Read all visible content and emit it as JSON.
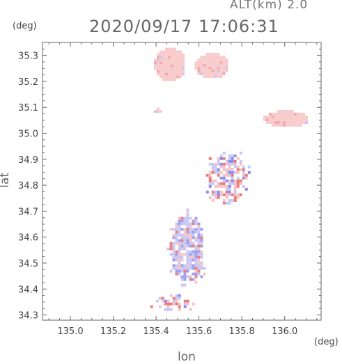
{
  "header": {
    "altitude_label": "ALT(km) 2.0",
    "timestamp": "2020/09/17 17:06:31",
    "y_unit": "(deg)",
    "x_unit": "(deg)"
  },
  "chart_data": {
    "type": "heatmap",
    "title": "2020/09/17 17:06:31",
    "xlabel": "lon",
    "ylabel": "lat",
    "xlim": [
      134.87,
      136.17
    ],
    "ylim": [
      34.28,
      35.35
    ],
    "xticks": [
      "135.0",
      "135.2",
      "135.4",
      "135.6",
      "135.8",
      "136.0"
    ],
    "yticks": [
      "34.3",
      "34.4",
      "34.5",
      "34.6",
      "34.7",
      "34.8",
      "34.9",
      "35.0",
      "35.1",
      "35.2",
      "35.3"
    ],
    "grid": false,
    "colors": {
      "positive": "#f08a8a",
      "negative": "#8a8af0",
      "near_zero": "#f5c8c8"
    },
    "regions": [
      {
        "name": "north-left",
        "lon": [
          135.39,
          135.53
        ],
        "lat": [
          35.21,
          35.33
        ],
        "tone": "positive-light"
      },
      {
        "name": "north-right",
        "lon": [
          135.58,
          135.73
        ],
        "lat": [
          35.22,
          35.31
        ],
        "tone": "positive-light"
      },
      {
        "name": "east",
        "lon": [
          135.9,
          136.1
        ],
        "lat": [
          35.03,
          35.09
        ],
        "tone": "positive-light"
      },
      {
        "name": "small-west",
        "lon": [
          135.39,
          135.42
        ],
        "lat": [
          35.08,
          35.1
        ],
        "tone": "positive-light"
      },
      {
        "name": "central-north",
        "lon": [
          135.62,
          135.83
        ],
        "lat": [
          34.72,
          34.94
        ],
        "tone": "mixed"
      },
      {
        "name": "central",
        "lon": [
          135.45,
          135.63
        ],
        "lat": [
          34.41,
          34.71
        ],
        "tone": "mixed-negative"
      },
      {
        "name": "south-edge",
        "lon": [
          135.36,
          135.58
        ],
        "lat": [
          34.32,
          34.38
        ],
        "tone": "mixed"
      }
    ]
  }
}
